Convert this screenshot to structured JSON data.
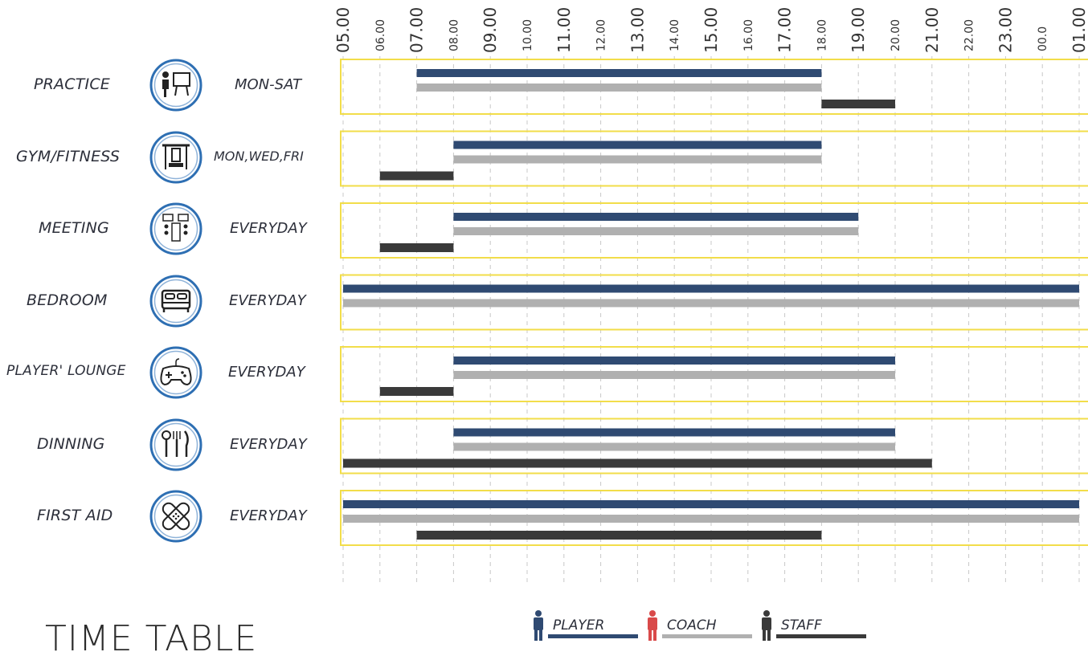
{
  "page_title": "TIME TABLE",
  "colors": {
    "player": "#2f4a72",
    "coach": "#b0b0b0",
    "staff": "#3a3a3a",
    "frame": "#f2dd4a",
    "grid": "#c8c8c8",
    "icon_ring": "#2e6fb3"
  },
  "legend": [
    {
      "key": "player",
      "label": "PLAYER",
      "icon": "player-person-icon"
    },
    {
      "key": "coach",
      "label": "COACH",
      "icon": "coach-person-icon"
    },
    {
      "key": "staff",
      "label": "STAFF",
      "icon": "staff-person-icon"
    }
  ],
  "chart_data": {
    "type": "gantt",
    "x_ticks": [
      "05.00",
      "06.00",
      "07.00",
      "08.00",
      "09.00",
      "10.00",
      "11.00",
      "12.00",
      "13.00",
      "14.00",
      "15.00",
      "16.00",
      "17.00",
      "18.00",
      "19.00",
      "20.00",
      "21.00",
      "22.00",
      "23.00",
      "00.0",
      "01.00"
    ],
    "x_range_hours": [
      5,
      25
    ],
    "rows": [
      {
        "name": "PRACTICE",
        "days": "MON-SAT",
        "icon": "practice-whiteboard-icon",
        "bars": [
          {
            "role": "player",
            "start": 7,
            "end": 18
          },
          {
            "role": "coach",
            "start": 7,
            "end": 18
          },
          {
            "role": "staff",
            "start": 18,
            "end": 20
          }
        ]
      },
      {
        "name": "GYM/FITNESS",
        "days": "MON,WED,FRI",
        "icon": "gym-weights-icon",
        "bars": [
          {
            "role": "player",
            "start": 8,
            "end": 18
          },
          {
            "role": "coach",
            "start": 8,
            "end": 18
          },
          {
            "role": "staff",
            "start": 6,
            "end": 8
          }
        ]
      },
      {
        "name": "MEETING",
        "days": "EVERYDAY",
        "icon": "meeting-room-icon",
        "bars": [
          {
            "role": "player",
            "start": 8,
            "end": 19
          },
          {
            "role": "coach",
            "start": 8,
            "end": 19
          },
          {
            "role": "staff",
            "start": 6,
            "end": 8
          }
        ]
      },
      {
        "name": "BEDROOM",
        "days": "EVERYDAY",
        "icon": "bed-icon",
        "bars": [
          {
            "role": "player",
            "start": 5,
            "end": 25
          },
          {
            "role": "coach",
            "start": 5,
            "end": 25
          }
        ]
      },
      {
        "name": "PLAYER' LOUNGE",
        "days": "EVERYDAY",
        "icon": "game-controller-icon",
        "bars": [
          {
            "role": "player",
            "start": 8,
            "end": 20
          },
          {
            "role": "coach",
            "start": 8,
            "end": 20
          },
          {
            "role": "staff",
            "start": 6,
            "end": 8
          }
        ]
      },
      {
        "name": "DINNING",
        "days": "EVERYDAY",
        "icon": "cutlery-icon",
        "bars": [
          {
            "role": "player",
            "start": 8,
            "end": 20
          },
          {
            "role": "coach",
            "start": 8,
            "end": 20
          },
          {
            "role": "staff",
            "start": 5,
            "end": 21
          }
        ]
      },
      {
        "name": "FIRST AID",
        "days": "EVERYDAY",
        "icon": "bandage-icon",
        "bars": [
          {
            "role": "player",
            "start": 5,
            "end": 25
          },
          {
            "role": "coach",
            "start": 5,
            "end": 25
          },
          {
            "role": "staff",
            "start": 7,
            "end": 18
          }
        ]
      }
    ]
  }
}
